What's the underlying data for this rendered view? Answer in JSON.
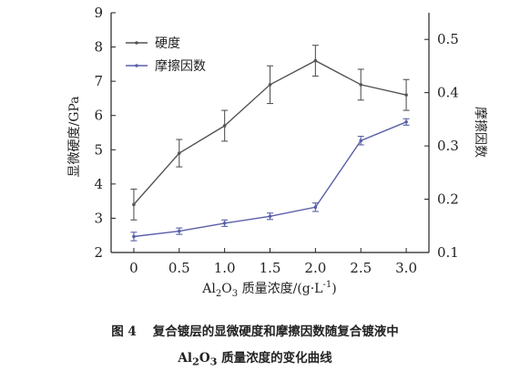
{
  "chart_data": {
    "type": "line",
    "x": [
      0,
      0.5,
      1.0,
      1.5,
      2.0,
      2.5,
      3.0
    ],
    "xtick_labels": [
      "0",
      "0.5",
      "1.0",
      "1.5",
      "2.0",
      "2.5",
      "3.0"
    ],
    "xlim": [
      -0.25,
      3.25
    ],
    "xlabel_main": "Al",
    "xlabel_sub1": "2",
    "xlabel_mid": "O",
    "xlabel_sub2": "3",
    "xlabel_rest": " 质量浓度/(g·L",
    "xlabel_sup": "-1",
    "xlabel_end": ")",
    "ylabel_left": "显微硬度/GPa",
    "ylim_left": [
      2,
      9
    ],
    "yticks_left": [
      2,
      3,
      4,
      5,
      6,
      7,
      8,
      9
    ],
    "ylabel_right": "摩擦因数",
    "ylim_right": [
      0.1,
      0.55
    ],
    "yticks_right": [
      "0.1",
      "0.2",
      "0.3",
      "0.4",
      "0.5"
    ],
    "series": [
      {
        "name": "硬度",
        "axis": "left",
        "color": "#555555",
        "values": [
          3.4,
          4.9,
          5.7,
          6.9,
          7.6,
          6.9,
          6.6
        ],
        "err": [
          0.45,
          0.4,
          0.45,
          0.55,
          0.45,
          0.45,
          0.45
        ]
      },
      {
        "name": "摩擦因数",
        "axis": "right",
        "color": "#5a5fa8",
        "values": [
          0.13,
          0.14,
          0.155,
          0.168,
          0.185,
          0.31,
          0.345
        ],
        "err": [
          0.008,
          0.006,
          0.006,
          0.006,
          0.008,
          0.008,
          0.006
        ]
      }
    ],
    "legend_position": "top-left",
    "grid": false
  },
  "caption": {
    "figure_number": "图 4",
    "line1": "复合镀层的显微硬度和摩擦因数随复合镀液中",
    "line2_main": "Al",
    "line2_sub1": "2",
    "line2_mid": "O",
    "line2_sub2": "3",
    "line2_rest": " 质量浓度的变化曲线"
  }
}
